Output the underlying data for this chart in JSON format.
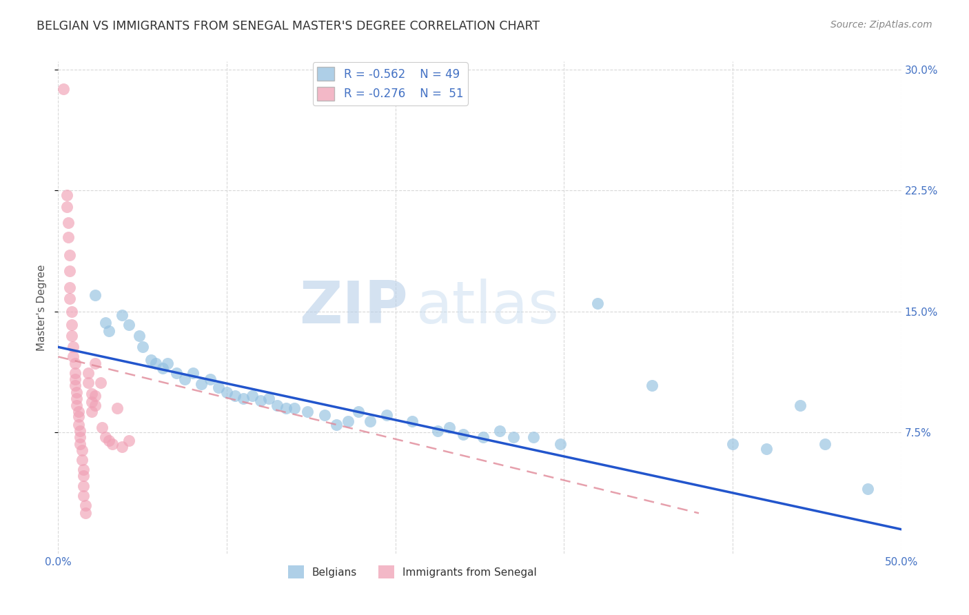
{
  "title": "BELGIAN VS IMMIGRANTS FROM SENEGAL MASTER'S DEGREE CORRELATION CHART",
  "source": "Source: ZipAtlas.com",
  "ylabel": "Master's Degree",
  "xlim": [
    0.0,
    0.5
  ],
  "ylim": [
    0.0,
    0.305
  ],
  "ytick_pos": [
    0.075,
    0.15,
    0.225,
    0.3
  ],
  "ytick_labels": [
    "7.5%",
    "15.0%",
    "22.5%",
    "30.0%"
  ],
  "xtick_pos": [
    0.0,
    0.1,
    0.2,
    0.3,
    0.4,
    0.5
  ],
  "xtick_labels": [
    "0.0%",
    "",
    "",
    "",
    "",
    "50.0%"
  ],
  "grid_color": "#d8d8d8",
  "background_color": "#ffffff",
  "legend_label_blue": "Belgians",
  "legend_label_pink": "Immigrants from Senegal",
  "blue_color": "#93c0e0",
  "pink_color": "#f0a0b5",
  "blue_line_color": "#2255cc",
  "pink_line_color": "#e08898",
  "blue_scatter": [
    [
      0.022,
      0.16
    ],
    [
      0.028,
      0.143
    ],
    [
      0.03,
      0.138
    ],
    [
      0.038,
      0.148
    ],
    [
      0.042,
      0.142
    ],
    [
      0.048,
      0.135
    ],
    [
      0.05,
      0.128
    ],
    [
      0.055,
      0.12
    ],
    [
      0.058,
      0.118
    ],
    [
      0.062,
      0.115
    ],
    [
      0.065,
      0.118
    ],
    [
      0.07,
      0.112
    ],
    [
      0.075,
      0.108
    ],
    [
      0.08,
      0.112
    ],
    [
      0.085,
      0.105
    ],
    [
      0.09,
      0.108
    ],
    [
      0.095,
      0.103
    ],
    [
      0.1,
      0.1
    ],
    [
      0.105,
      0.098
    ],
    [
      0.11,
      0.096
    ],
    [
      0.115,
      0.098
    ],
    [
      0.12,
      0.095
    ],
    [
      0.125,
      0.096
    ],
    [
      0.13,
      0.092
    ],
    [
      0.135,
      0.09
    ],
    [
      0.14,
      0.09
    ],
    [
      0.148,
      0.088
    ],
    [
      0.158,
      0.086
    ],
    [
      0.165,
      0.08
    ],
    [
      0.172,
      0.082
    ],
    [
      0.178,
      0.088
    ],
    [
      0.185,
      0.082
    ],
    [
      0.195,
      0.086
    ],
    [
      0.21,
      0.082
    ],
    [
      0.225,
      0.076
    ],
    [
      0.232,
      0.078
    ],
    [
      0.24,
      0.074
    ],
    [
      0.252,
      0.072
    ],
    [
      0.262,
      0.076
    ],
    [
      0.27,
      0.072
    ],
    [
      0.282,
      0.072
    ],
    [
      0.298,
      0.068
    ],
    [
      0.32,
      0.155
    ],
    [
      0.352,
      0.104
    ],
    [
      0.4,
      0.068
    ],
    [
      0.42,
      0.065
    ],
    [
      0.44,
      0.092
    ],
    [
      0.455,
      0.068
    ],
    [
      0.48,
      0.04
    ]
  ],
  "pink_scatter": [
    [
      0.003,
      0.288
    ],
    [
      0.005,
      0.222
    ],
    [
      0.005,
      0.215
    ],
    [
      0.006,
      0.205
    ],
    [
      0.006,
      0.196
    ],
    [
      0.007,
      0.185
    ],
    [
      0.007,
      0.175
    ],
    [
      0.007,
      0.165
    ],
    [
      0.007,
      0.158
    ],
    [
      0.008,
      0.15
    ],
    [
      0.008,
      0.142
    ],
    [
      0.008,
      0.135
    ],
    [
      0.009,
      0.128
    ],
    [
      0.009,
      0.122
    ],
    [
      0.01,
      0.118
    ],
    [
      0.01,
      0.112
    ],
    [
      0.01,
      0.108
    ],
    [
      0.01,
      0.104
    ],
    [
      0.011,
      0.1
    ],
    [
      0.011,
      0.096
    ],
    [
      0.011,
      0.092
    ],
    [
      0.012,
      0.088
    ],
    [
      0.012,
      0.085
    ],
    [
      0.012,
      0.08
    ],
    [
      0.013,
      0.076
    ],
    [
      0.013,
      0.072
    ],
    [
      0.013,
      0.068
    ],
    [
      0.014,
      0.064
    ],
    [
      0.014,
      0.058
    ],
    [
      0.015,
      0.052
    ],
    [
      0.015,
      0.048
    ],
    [
      0.015,
      0.042
    ],
    [
      0.015,
      0.036
    ],
    [
      0.016,
      0.03
    ],
    [
      0.016,
      0.025
    ],
    [
      0.018,
      0.112
    ],
    [
      0.018,
      0.106
    ],
    [
      0.02,
      0.099
    ],
    [
      0.02,
      0.094
    ],
    [
      0.02,
      0.088
    ],
    [
      0.022,
      0.118
    ],
    [
      0.022,
      0.098
    ],
    [
      0.022,
      0.092
    ],
    [
      0.025,
      0.106
    ],
    [
      0.026,
      0.078
    ],
    [
      0.028,
      0.072
    ],
    [
      0.03,
      0.07
    ],
    [
      0.032,
      0.068
    ],
    [
      0.035,
      0.09
    ],
    [
      0.038,
      0.066
    ],
    [
      0.042,
      0.07
    ]
  ],
  "blue_trendline": [
    0.0,
    0.128,
    0.5,
    0.015
  ],
  "pink_trendline": [
    0.0,
    0.122,
    0.38,
    0.025
  ]
}
